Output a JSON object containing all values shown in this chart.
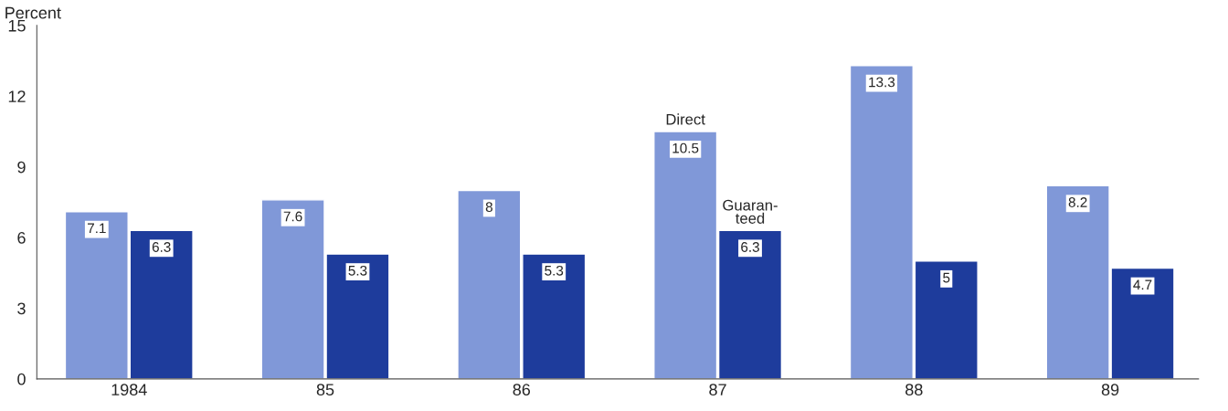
{
  "chart_data": {
    "type": "bar",
    "ylabel": "Percent",
    "categories": [
      "1984",
      "85",
      "86",
      "87",
      "88",
      "89"
    ],
    "series": [
      {
        "color": "#8098d8",
        "values": [
          7.1,
          7.6,
          8,
          10.5,
          13.3,
          8.2
        ]
      },
      {
        "color": "#1e3c9c",
        "values": [
          6.3,
          5.3,
          5.3,
          6.3,
          5,
          4.7
        ]
      }
    ],
    "ylim": [
      0,
      15
    ],
    "yticks": [
      0,
      3,
      6,
      9,
      12,
      15
    ],
    "data_labels": true,
    "grid": false,
    "legend": false,
    "annotations": [
      {
        "text": "Direct",
        "x": "87",
        "y": 10.5
      },
      {
        "text": "Guaran-\nteed",
        "x": "87",
        "y": 6.3
      }
    ]
  }
}
